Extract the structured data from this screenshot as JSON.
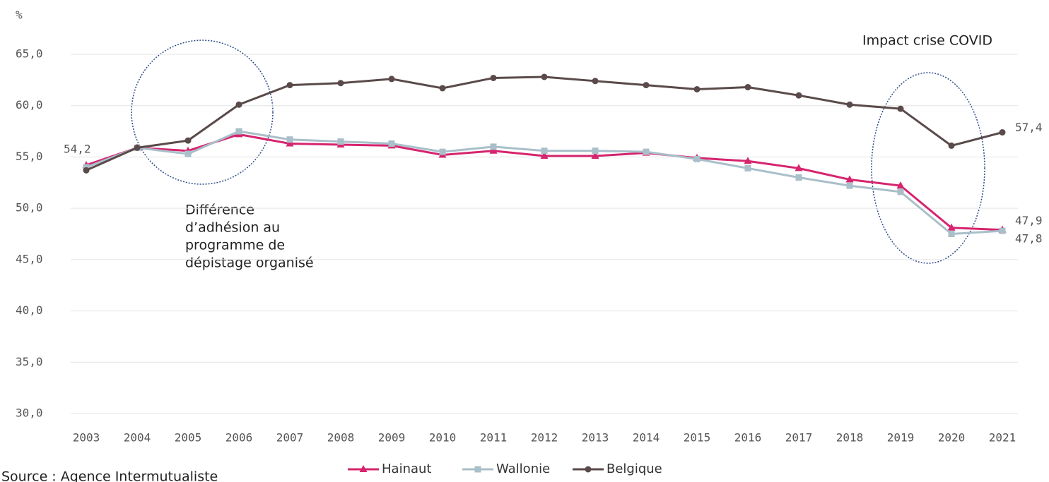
{
  "chart_data": {
    "type": "line",
    "y_unit": "%",
    "x": [
      "2003",
      "2004",
      "2005",
      "2006",
      "2007",
      "2008",
      "2009",
      "2010",
      "2011",
      "2012",
      "2013",
      "2014",
      "2015",
      "2016",
      "2017",
      "2018",
      "2019",
      "2020",
      "2021"
    ],
    "series": [
      {
        "name": "Hainaut",
        "color": "#d6246e",
        "marker": "triangle",
        "values": [
          54.2,
          55.9,
          55.6,
          57.2,
          56.3,
          56.2,
          56.1,
          55.2,
          55.6,
          55.1,
          55.1,
          55.4,
          54.9,
          54.6,
          53.9,
          52.8,
          52.2,
          48.1,
          47.9
        ],
        "value_labels": [
          "54,2",
          null,
          null,
          null,
          null,
          null,
          null,
          null,
          null,
          null,
          null,
          null,
          null,
          null,
          null,
          null,
          null,
          null,
          "47,9"
        ]
      },
      {
        "name": "Wallonie",
        "color": "#a9bfc9",
        "marker": "square",
        "values": [
          54.0,
          55.9,
          55.3,
          57.5,
          56.7,
          56.5,
          56.3,
          55.5,
          56.0,
          55.6,
          55.6,
          55.5,
          54.8,
          53.9,
          53.0,
          52.2,
          51.6,
          47.5,
          47.8
        ],
        "value_labels": [
          null,
          null,
          null,
          null,
          null,
          null,
          null,
          null,
          null,
          null,
          null,
          null,
          null,
          null,
          null,
          null,
          null,
          null,
          "47,8"
        ]
      },
      {
        "name": "Belgique",
        "color": "#5a4a4a",
        "marker": "circle",
        "values": [
          53.7,
          55.9,
          56.6,
          60.1,
          62.0,
          62.2,
          62.6,
          61.7,
          62.7,
          62.8,
          62.4,
          62.0,
          61.6,
          61.8,
          61.0,
          60.1,
          59.7,
          56.1,
          57.4
        ],
        "value_labels": [
          null,
          null,
          null,
          null,
          null,
          null,
          null,
          null,
          null,
          null,
          null,
          null,
          null,
          null,
          null,
          null,
          null,
          null,
          "57,4"
        ]
      }
    ],
    "ylim": [
      30,
      65
    ],
    "yticks": [
      {
        "value": 30,
        "label": "30,0"
      },
      {
        "value": 35,
        "label": "35,0"
      },
      {
        "value": 40,
        "label": "40,0"
      },
      {
        "value": 45,
        "label": "45,0"
      },
      {
        "value": 50,
        "label": "50,0"
      },
      {
        "value": 55,
        "label": "55,0"
      },
      {
        "value": 60,
        "label": "60,0"
      },
      {
        "value": 65,
        "label": "65,0"
      }
    ],
    "grid": true,
    "legend": "bottom",
    "annotations": [
      {
        "lines": [
          "Différence",
          "d’adhésion au",
          "programme de",
          "dépistage organisé"
        ]
      },
      {
        "lines": [
          "Impact crise COVID"
        ]
      }
    ],
    "source": "Source : Agence Intermutualiste"
  }
}
